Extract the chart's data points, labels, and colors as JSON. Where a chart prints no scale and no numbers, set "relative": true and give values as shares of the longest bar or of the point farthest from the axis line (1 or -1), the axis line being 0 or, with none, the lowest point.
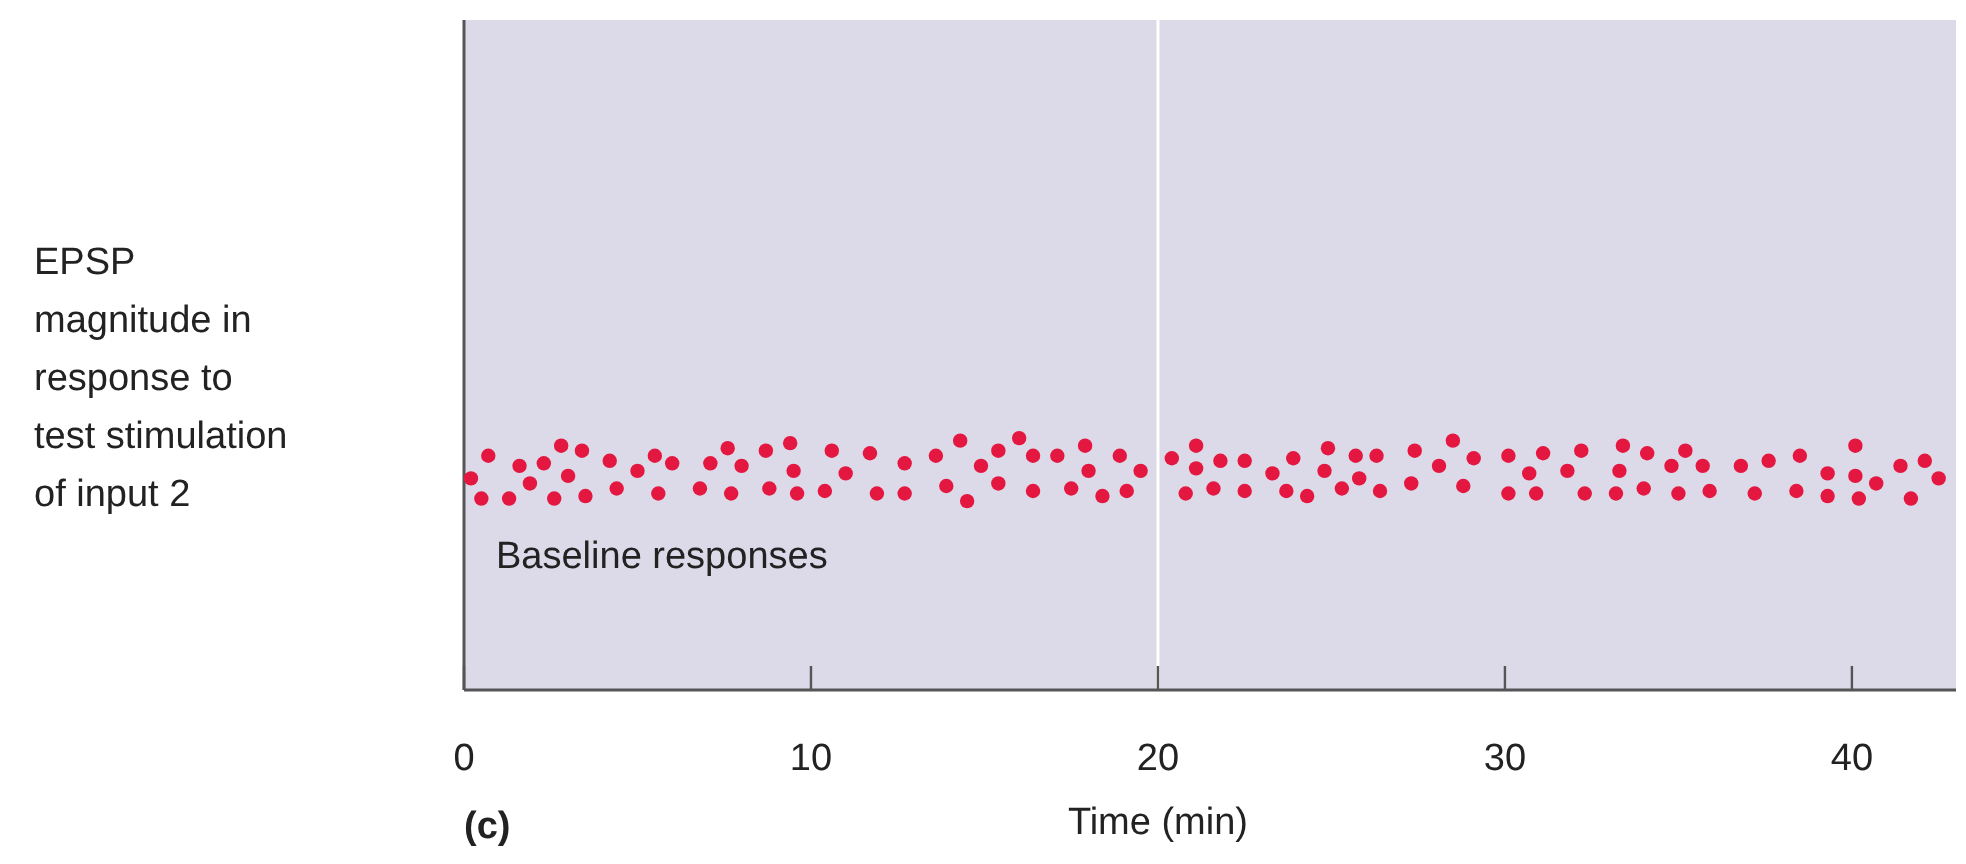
{
  "chart_data": {
    "type": "scatter",
    "xlabel": "Time (min)",
    "ylabel": "EPSP\nmagnitude in\nresponse to\ntest stimulation\nof input 2",
    "relative": true,
    "marker": "circle",
    "color": "#e3173f",
    "x": [
      0.2,
      0.7,
      0.5,
      1.3,
      1.6,
      2.3,
      1.9,
      2.8,
      3.0,
      2.6,
      3.4,
      3.5,
      4.2,
      4.4,
      5.0,
      5.5,
      6.0,
      5.6,
      6.8,
      7.1,
      7.6,
      8.0,
      7.7,
      8.7,
      8.8,
      9.4,
      9.5,
      9.6,
      10.4,
      10.6,
      11.0,
      11.7,
      11.9,
      12.7,
      12.7,
      13.6,
      13.9,
      14.3,
      14.5,
      14.9,
      15.4,
      15.4,
      16.0,
      16.4,
      16.4,
      17.1,
      17.5,
      17.9,
      18.0,
      18.4,
      18.9,
      19.1,
      19.5,
      20.4,
      21.1,
      21.1,
      20.8,
      21.8,
      21.6,
      22.5,
      22.5,
      23.3,
      23.7,
      23.9,
      24.3,
      24.9,
      24.8,
      25.3,
      25.7,
      25.8,
      26.3,
      26.4,
      27.4,
      27.3,
      28.1,
      28.5,
      28.8,
      29.1,
      30.1,
      30.1,
      30.7,
      30.9,
      31.1,
      31.8,
      32.2,
      32.3,
      33.2,
      33.3,
      33.4,
      34.0,
      34.1,
      34.8,
      35.2,
      35.0,
      35.7,
      35.9,
      36.8,
      37.2,
      37.6,
      38.4,
      38.5,
      39.3,
      39.3,
      40.1,
      40.1,
      40.2,
      40.7,
      41.4,
      41.7,
      42.1,
      42.5
    ],
    "values": [
      0.84,
      0.93,
      0.76,
      0.76,
      0.89,
      0.9,
      0.82,
      0.97,
      0.85,
      0.76,
      0.95,
      0.77,
      0.91,
      0.8,
      0.87,
      0.93,
      0.9,
      0.78,
      0.8,
      0.9,
      0.96,
      0.89,
      0.78,
      0.95,
      0.8,
      0.98,
      0.87,
      0.78,
      0.79,
      0.95,
      0.86,
      0.94,
      0.78,
      0.9,
      0.78,
      0.93,
      0.81,
      0.99,
      0.75,
      0.89,
      0.95,
      0.82,
      1.0,
      0.93,
      0.79,
      0.93,
      0.8,
      0.97,
      0.87,
      0.77,
      0.93,
      0.79,
      0.87,
      0.92,
      0.97,
      0.88,
      0.78,
      0.91,
      0.8,
      0.91,
      0.79,
      0.86,
      0.79,
      0.92,
      0.77,
      0.96,
      0.87,
      0.8,
      0.93,
      0.84,
      0.93,
      0.79,
      0.95,
      0.82,
      0.89,
      0.99,
      0.81,
      0.92,
      0.93,
      0.78,
      0.86,
      0.78,
      0.94,
      0.87,
      0.95,
      0.78,
      0.78,
      0.87,
      0.97,
      0.8,
      0.94,
      0.89,
      0.95,
      0.78,
      0.89,
      0.79,
      0.89,
      0.78,
      0.91,
      0.79,
      0.93,
      0.86,
      0.77,
      0.97,
      0.85,
      0.76,
      0.82,
      0.89,
      0.76,
      0.91,
      0.84
    ],
    "xlim": [
      0,
      43
    ],
    "xticks": [
      0,
      10,
      20,
      30,
      40
    ],
    "ref_lines": [
      {
        "axis": "x",
        "value": 20,
        "color": "#ffffff"
      }
    ],
    "annotations": [
      "Baseline responses",
      "(c)"
    ]
  }
}
